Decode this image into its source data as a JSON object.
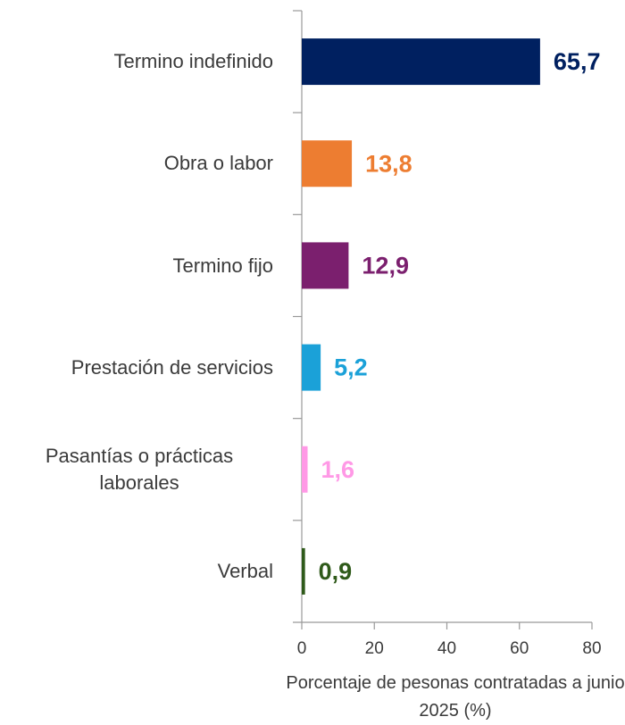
{
  "chart_data": {
    "type": "bar",
    "orientation": "horizontal",
    "categories": [
      "Termino indefinido",
      "Obra o labor",
      "Termino fijo",
      "Prestación de servicios",
      "Pasantías o prácticas laborales",
      "Verbal"
    ],
    "values": [
      65.7,
      13.8,
      12.9,
      5.2,
      1.6,
      0.9
    ],
    "value_labels": [
      "65,7",
      "13,8",
      "12,9",
      "5,2",
      "1,6",
      "0,9"
    ],
    "colors": [
      "#002060",
      "#ED7D31",
      "#7B1F6E",
      "#1BA1D8",
      "#FF99E6",
      "#2F5A1A"
    ],
    "xlim": [
      0,
      80
    ],
    "xticks": [
      0,
      20,
      40,
      60,
      80
    ],
    "xlabel": "Porcentaje de pesonas contratadas a junio 2025 (%)"
  }
}
